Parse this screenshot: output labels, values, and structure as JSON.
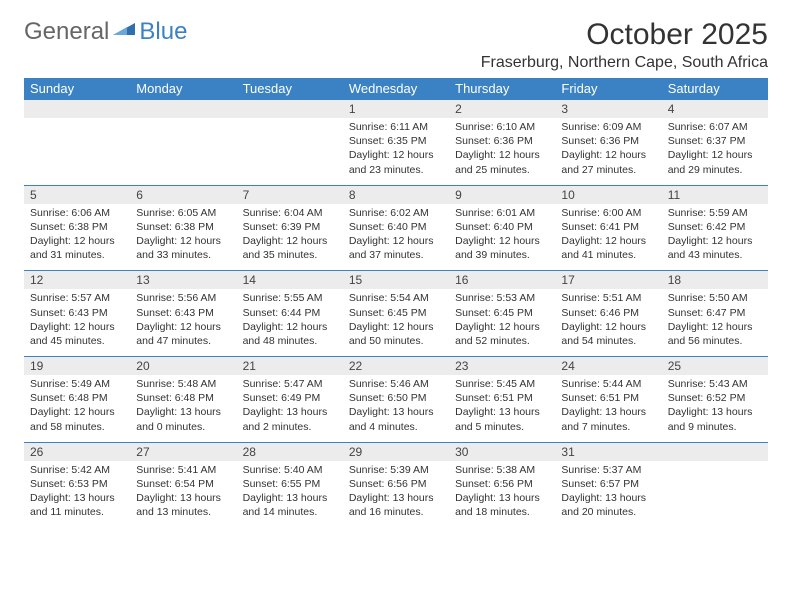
{
  "logo": {
    "text_a": "General",
    "text_b": "Blue"
  },
  "title": "October 2025",
  "subtitle": "Fraserburg, Northern Cape, South Africa",
  "colors": {
    "header_bg": "#3b82c4",
    "header_text": "#ffffff",
    "daynum_bg": "#ececec",
    "row_border": "#3b82c4",
    "body_text": "#333333",
    "logo_gray": "#666666",
    "logo_blue": "#3b82c4",
    "page_bg": "#ffffff"
  },
  "fonts": {
    "title_size": 30,
    "subtitle_size": 16,
    "header_size": 13,
    "cell_size": 10.5
  },
  "weekdays": [
    "Sunday",
    "Monday",
    "Tuesday",
    "Wednesday",
    "Thursday",
    "Friday",
    "Saturday"
  ],
  "weeks": [
    {
      "nums": [
        "",
        "",
        "",
        "1",
        "2",
        "3",
        "4"
      ],
      "cells": [
        {
          "sunrise": "",
          "sunset": "",
          "daylight1": "",
          "daylight2": ""
        },
        {
          "sunrise": "",
          "sunset": "",
          "daylight1": "",
          "daylight2": ""
        },
        {
          "sunrise": "",
          "sunset": "",
          "daylight1": "",
          "daylight2": ""
        },
        {
          "sunrise": "Sunrise: 6:11 AM",
          "sunset": "Sunset: 6:35 PM",
          "daylight1": "Daylight: 12 hours",
          "daylight2": "and 23 minutes."
        },
        {
          "sunrise": "Sunrise: 6:10 AM",
          "sunset": "Sunset: 6:36 PM",
          "daylight1": "Daylight: 12 hours",
          "daylight2": "and 25 minutes."
        },
        {
          "sunrise": "Sunrise: 6:09 AM",
          "sunset": "Sunset: 6:36 PM",
          "daylight1": "Daylight: 12 hours",
          "daylight2": "and 27 minutes."
        },
        {
          "sunrise": "Sunrise: 6:07 AM",
          "sunset": "Sunset: 6:37 PM",
          "daylight1": "Daylight: 12 hours",
          "daylight2": "and 29 minutes."
        }
      ]
    },
    {
      "nums": [
        "5",
        "6",
        "7",
        "8",
        "9",
        "10",
        "11"
      ],
      "cells": [
        {
          "sunrise": "Sunrise: 6:06 AM",
          "sunset": "Sunset: 6:38 PM",
          "daylight1": "Daylight: 12 hours",
          "daylight2": "and 31 minutes."
        },
        {
          "sunrise": "Sunrise: 6:05 AM",
          "sunset": "Sunset: 6:38 PM",
          "daylight1": "Daylight: 12 hours",
          "daylight2": "and 33 minutes."
        },
        {
          "sunrise": "Sunrise: 6:04 AM",
          "sunset": "Sunset: 6:39 PM",
          "daylight1": "Daylight: 12 hours",
          "daylight2": "and 35 minutes."
        },
        {
          "sunrise": "Sunrise: 6:02 AM",
          "sunset": "Sunset: 6:40 PM",
          "daylight1": "Daylight: 12 hours",
          "daylight2": "and 37 minutes."
        },
        {
          "sunrise": "Sunrise: 6:01 AM",
          "sunset": "Sunset: 6:40 PM",
          "daylight1": "Daylight: 12 hours",
          "daylight2": "and 39 minutes."
        },
        {
          "sunrise": "Sunrise: 6:00 AM",
          "sunset": "Sunset: 6:41 PM",
          "daylight1": "Daylight: 12 hours",
          "daylight2": "and 41 minutes."
        },
        {
          "sunrise": "Sunrise: 5:59 AM",
          "sunset": "Sunset: 6:42 PM",
          "daylight1": "Daylight: 12 hours",
          "daylight2": "and 43 minutes."
        }
      ]
    },
    {
      "nums": [
        "12",
        "13",
        "14",
        "15",
        "16",
        "17",
        "18"
      ],
      "cells": [
        {
          "sunrise": "Sunrise: 5:57 AM",
          "sunset": "Sunset: 6:43 PM",
          "daylight1": "Daylight: 12 hours",
          "daylight2": "and 45 minutes."
        },
        {
          "sunrise": "Sunrise: 5:56 AM",
          "sunset": "Sunset: 6:43 PM",
          "daylight1": "Daylight: 12 hours",
          "daylight2": "and 47 minutes."
        },
        {
          "sunrise": "Sunrise: 5:55 AM",
          "sunset": "Sunset: 6:44 PM",
          "daylight1": "Daylight: 12 hours",
          "daylight2": "and 48 minutes."
        },
        {
          "sunrise": "Sunrise: 5:54 AM",
          "sunset": "Sunset: 6:45 PM",
          "daylight1": "Daylight: 12 hours",
          "daylight2": "and 50 minutes."
        },
        {
          "sunrise": "Sunrise: 5:53 AM",
          "sunset": "Sunset: 6:45 PM",
          "daylight1": "Daylight: 12 hours",
          "daylight2": "and 52 minutes."
        },
        {
          "sunrise": "Sunrise: 5:51 AM",
          "sunset": "Sunset: 6:46 PM",
          "daylight1": "Daylight: 12 hours",
          "daylight2": "and 54 minutes."
        },
        {
          "sunrise": "Sunrise: 5:50 AM",
          "sunset": "Sunset: 6:47 PM",
          "daylight1": "Daylight: 12 hours",
          "daylight2": "and 56 minutes."
        }
      ]
    },
    {
      "nums": [
        "19",
        "20",
        "21",
        "22",
        "23",
        "24",
        "25"
      ],
      "cells": [
        {
          "sunrise": "Sunrise: 5:49 AM",
          "sunset": "Sunset: 6:48 PM",
          "daylight1": "Daylight: 12 hours",
          "daylight2": "and 58 minutes."
        },
        {
          "sunrise": "Sunrise: 5:48 AM",
          "sunset": "Sunset: 6:48 PM",
          "daylight1": "Daylight: 13 hours",
          "daylight2": "and 0 minutes."
        },
        {
          "sunrise": "Sunrise: 5:47 AM",
          "sunset": "Sunset: 6:49 PM",
          "daylight1": "Daylight: 13 hours",
          "daylight2": "and 2 minutes."
        },
        {
          "sunrise": "Sunrise: 5:46 AM",
          "sunset": "Sunset: 6:50 PM",
          "daylight1": "Daylight: 13 hours",
          "daylight2": "and 4 minutes."
        },
        {
          "sunrise": "Sunrise: 5:45 AM",
          "sunset": "Sunset: 6:51 PM",
          "daylight1": "Daylight: 13 hours",
          "daylight2": "and 5 minutes."
        },
        {
          "sunrise": "Sunrise: 5:44 AM",
          "sunset": "Sunset: 6:51 PM",
          "daylight1": "Daylight: 13 hours",
          "daylight2": "and 7 minutes."
        },
        {
          "sunrise": "Sunrise: 5:43 AM",
          "sunset": "Sunset: 6:52 PM",
          "daylight1": "Daylight: 13 hours",
          "daylight2": "and 9 minutes."
        }
      ]
    },
    {
      "nums": [
        "26",
        "27",
        "28",
        "29",
        "30",
        "31",
        ""
      ],
      "cells": [
        {
          "sunrise": "Sunrise: 5:42 AM",
          "sunset": "Sunset: 6:53 PM",
          "daylight1": "Daylight: 13 hours",
          "daylight2": "and 11 minutes."
        },
        {
          "sunrise": "Sunrise: 5:41 AM",
          "sunset": "Sunset: 6:54 PM",
          "daylight1": "Daylight: 13 hours",
          "daylight2": "and 13 minutes."
        },
        {
          "sunrise": "Sunrise: 5:40 AM",
          "sunset": "Sunset: 6:55 PM",
          "daylight1": "Daylight: 13 hours",
          "daylight2": "and 14 minutes."
        },
        {
          "sunrise": "Sunrise: 5:39 AM",
          "sunset": "Sunset: 6:56 PM",
          "daylight1": "Daylight: 13 hours",
          "daylight2": "and 16 minutes."
        },
        {
          "sunrise": "Sunrise: 5:38 AM",
          "sunset": "Sunset: 6:56 PM",
          "daylight1": "Daylight: 13 hours",
          "daylight2": "and 18 minutes."
        },
        {
          "sunrise": "Sunrise: 5:37 AM",
          "sunset": "Sunset: 6:57 PM",
          "daylight1": "Daylight: 13 hours",
          "daylight2": "and 20 minutes."
        },
        {
          "sunrise": "",
          "sunset": "",
          "daylight1": "",
          "daylight2": ""
        }
      ]
    }
  ]
}
